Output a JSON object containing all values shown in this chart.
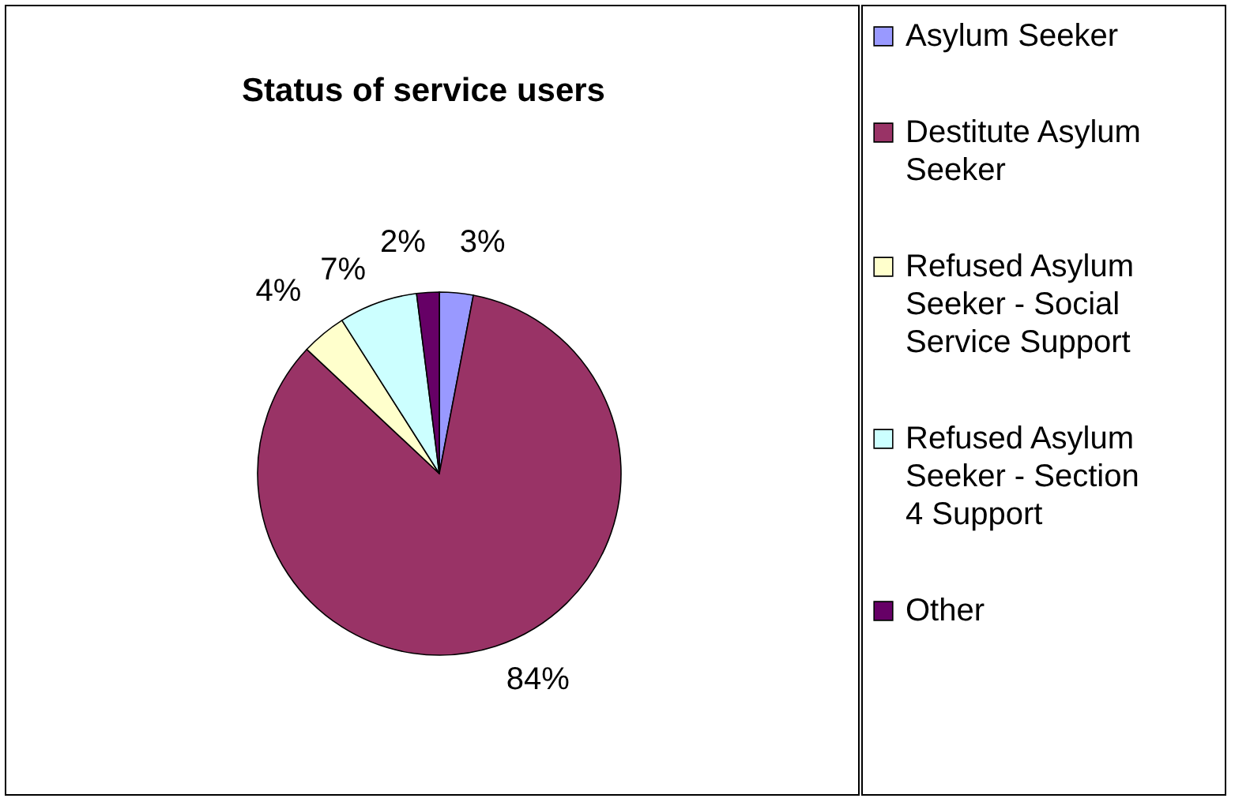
{
  "chart_data": {
    "type": "pie",
    "title": "Status of service users",
    "categories": [
      "Asylum Seeker",
      "Destitute Asylum Seeker",
      "Refused Asylum Seeker - Social Service Support",
      "Refused Asylum Seeker - Section 4 Support",
      "Other"
    ],
    "values": [
      3,
      84,
      4,
      7,
      2
    ],
    "colors": [
      "#9999ff",
      "#993366",
      "#ffffcc",
      "#ccffff",
      "#660066"
    ],
    "value_labels": [
      "3%",
      "84%",
      "4%",
      "7%",
      "2%"
    ],
    "legend": "right"
  }
}
